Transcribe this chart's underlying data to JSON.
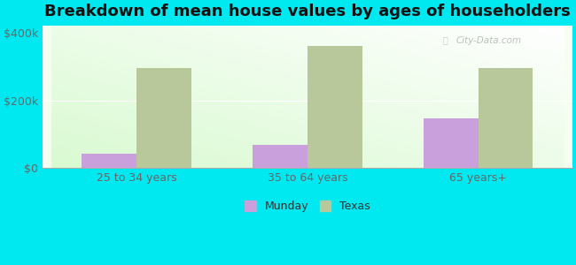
{
  "title": "Breakdown of mean house values by ages of householders",
  "categories": [
    "25 to 34 years",
    "35 to 64 years",
    "65 years+"
  ],
  "munday_values": [
    42000,
    68000,
    148000
  ],
  "texas_values": [
    295000,
    360000,
    295000
  ],
  "ylim": [
    0,
    420000
  ],
  "yticks": [
    0,
    200000,
    400000
  ],
  "ytick_labels": [
    "$0",
    "$200k",
    "$400k"
  ],
  "munday_color": "#c9a0dc",
  "texas_color": "#b8c89a",
  "background_outer": "#00e8f0",
  "title_fontsize": 13,
  "legend_labels": [
    "Munday",
    "Texas"
  ],
  "watermark": "City-Data.com",
  "bar_width": 0.32
}
